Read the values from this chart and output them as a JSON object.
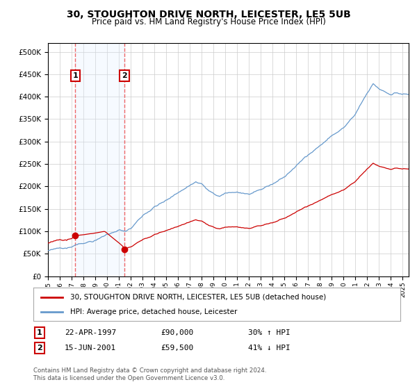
{
  "title": "30, STOUGHTON DRIVE NORTH, LEICESTER, LE5 5UB",
  "subtitle": "Price paid vs. HM Land Registry's House Price Index (HPI)",
  "legend_line1": "30, STOUGHTON DRIVE NORTH, LEICESTER, LE5 5UB (detached house)",
  "legend_line2": "HPI: Average price, detached house, Leicester",
  "annotation1_label": "1",
  "annotation1_date": "22-APR-1997",
  "annotation1_price": "£90,000",
  "annotation1_hpi": "30% ↑ HPI",
  "annotation2_label": "2",
  "annotation2_date": "15-JUN-2001",
  "annotation2_price": "£59,500",
  "annotation2_hpi": "41% ↓ HPI",
  "footer": "Contains HM Land Registry data © Crown copyright and database right 2024.\nThis data is licensed under the Open Government Licence v3.0.",
  "sale1_year": 1997.31,
  "sale1_value": 90000,
  "sale2_year": 2001.46,
  "sale2_value": 59500,
  "hpi_color": "#6699cc",
  "price_color": "#cc0000",
  "sale_dot_color": "#cc0000",
  "vline_color": "#ee4444",
  "shade_color": "#ddeeff",
  "ylim": [
    0,
    520000
  ],
  "yticks": [
    0,
    50000,
    100000,
    150000,
    200000,
    250000,
    300000,
    350000,
    400000,
    450000,
    500000
  ],
  "xlim_start": 1995.0,
  "xlim_end": 2025.5,
  "background_color": "#ffffff",
  "grid_color": "#cccccc"
}
